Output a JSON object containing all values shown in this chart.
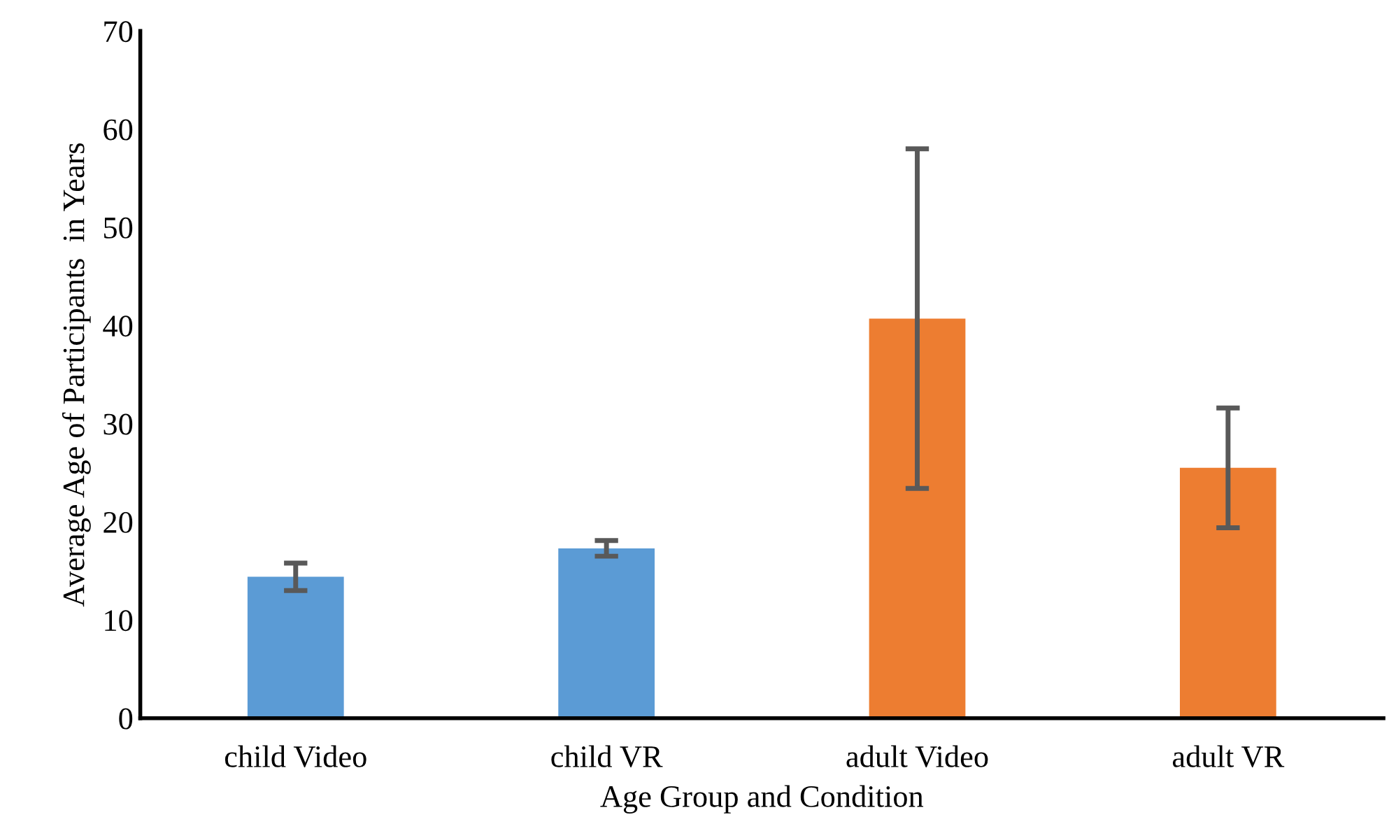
{
  "chart_data": {
    "type": "bar",
    "xlabel": "Age Group and Condition",
    "ylabel": "Average Age of Participants  in Years",
    "categories": [
      "child Video",
      "child VR",
      "adult Video",
      "adult VR"
    ],
    "values": [
      14.4,
      17.3,
      40.7,
      25.5
    ],
    "colors": [
      "#5b9bd5",
      "#5b9bd5",
      "#ed7d31",
      "#ed7d31"
    ],
    "errors": [
      1.4,
      0.8,
      17.3,
      6.1
    ],
    "ylim": [
      0,
      70
    ],
    "yticks": [
      0,
      10,
      20,
      30,
      40,
      50,
      60,
      70
    ],
    "grid": false
  }
}
